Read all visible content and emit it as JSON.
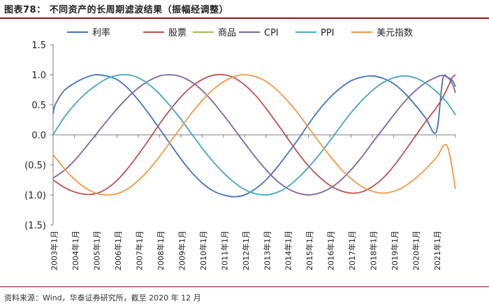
{
  "title": "图表78： 不同资产的长周期滤波结果（振幅经调整）",
  "source": "资料来源：Wind，华泰证券研究所，截至 2020 年 12 月",
  "chart_data": {
    "type": "line",
    "ylim": [
      -1.5,
      1.5
    ],
    "yticks": [
      1.5,
      1.0,
      0.5,
      0.0,
      -0.5,
      -1.0,
      -1.5
    ],
    "ytick_labels": [
      "1.5",
      "1.0",
      "0.5",
      "0.0",
      "(0.5)",
      "(1.0)",
      "(1.5)"
    ],
    "x_categories": [
      "2003年1月",
      "2004年1月",
      "2005年1月",
      "2006年1月",
      "2007年1月",
      "2008年1月",
      "2009年1月",
      "2010年1月",
      "2011年1月",
      "2012年1月",
      "2013年1月",
      "2014年1月",
      "2015年1月",
      "2016年1月",
      "2017年1月",
      "2018年1月",
      "2019年1月",
      "2020年1月",
      "2021年1月"
    ],
    "x_start": 2003.0,
    "x_end": 2021.9,
    "legend_position": "top",
    "grid": false,
    "series": [
      {
        "name": "利率",
        "color": "#4472C4",
        "x": [
          2003.0,
          2003.1,
          2003.5,
          2004.0,
          2004.5,
          2005.0,
          2005.5,
          2006.0,
          2006.5,
          2007.0,
          2007.5,
          2008.0,
          2008.5,
          2009.0,
          2009.5,
          2010.0,
          2010.5,
          2011.0,
          2011.5,
          2012.0,
          2012.5,
          2013.0,
          2013.5,
          2014.0,
          2014.5,
          2015.0,
          2015.5,
          2016.0,
          2016.5,
          2017.0,
          2017.5,
          2018.0,
          2018.5,
          2019.0,
          2019.5,
          2020.0,
          2020.5,
          2021.0,
          2021.3,
          2021.55,
          2021.7,
          2021.8,
          2021.9
        ],
        "y": [
          0.35,
          0.5,
          0.73,
          0.86,
          0.95,
          1.0,
          0.98,
          0.92,
          0.78,
          0.58,
          0.35,
          0.1,
          -0.15,
          -0.4,
          -0.62,
          -0.8,
          -0.93,
          -1.0,
          -1.03,
          -1.0,
          -0.9,
          -0.75,
          -0.55,
          -0.32,
          -0.08,
          0.18,
          0.42,
          0.62,
          0.78,
          0.9,
          0.96,
          0.98,
          0.94,
          0.85,
          0.7,
          0.5,
          0.28,
          0.05,
          0.92,
          0.95,
          0.92,
          0.88,
          0.8
        ]
      },
      {
        "name": "股票",
        "color": "#C0504D",
        "x": [
          2003.0,
          2003.5,
          2004.0,
          2004.5,
          2005.0,
          2005.5,
          2006.0,
          2006.5,
          2007.0,
          2007.5,
          2008.0,
          2008.5,
          2009.0,
          2009.5,
          2010.0,
          2010.5,
          2011.0,
          2011.5,
          2012.0,
          2012.5,
          2013.0,
          2013.5,
          2014.0,
          2014.5,
          2015.0,
          2015.5,
          2016.0,
          2016.5,
          2017.0,
          2017.5,
          2018.0,
          2018.5,
          2019.0,
          2019.5,
          2020.0,
          2020.5,
          2021.0,
          2021.3,
          2021.55,
          2021.75,
          2021.9
        ],
        "y": [
          -0.75,
          -0.87,
          -0.95,
          -0.99,
          -0.98,
          -0.9,
          -0.76,
          -0.56,
          -0.33,
          -0.08,
          0.18,
          0.42,
          0.63,
          0.8,
          0.92,
          0.99,
          1.0,
          0.95,
          0.83,
          0.66,
          0.44,
          0.2,
          -0.05,
          -0.3,
          -0.52,
          -0.7,
          -0.84,
          -0.93,
          -0.97,
          -0.95,
          -0.86,
          -0.72,
          -0.52,
          -0.28,
          -0.03,
          0.22,
          0.45,
          0.62,
          0.8,
          0.95,
          1.0
        ]
      },
      {
        "name": "商品",
        "color": "#9BBB59",
        "x": [
          2003.0,
          2003.5,
          2004.0,
          2004.5,
          2005.0,
          2005.5,
          2006.0,
          2006.5,
          2007.0,
          2007.5,
          2008.0,
          2008.5,
          2009.0,
          2009.5,
          2010.0,
          2010.5,
          2011.0,
          2011.5,
          2012.0,
          2012.5,
          2013.0,
          2013.5,
          2014.0,
          2014.5,
          2015.0,
          2015.5,
          2016.0,
          2016.5,
          2017.0,
          2017.5,
          2018.0,
          2018.5,
          2019.0,
          2019.5,
          2020.0,
          2020.5,
          2021.0,
          2021.5,
          2021.9
        ],
        "y": [
          0.0,
          0.28,
          0.5,
          0.68,
          0.82,
          0.93,
          0.99,
          1.0,
          0.95,
          0.84,
          0.68,
          0.48,
          0.26,
          0.02,
          -0.22,
          -0.44,
          -0.63,
          -0.79,
          -0.91,
          -0.98,
          -1.0,
          -0.96,
          -0.87,
          -0.72,
          -0.54,
          -0.33,
          -0.1,
          0.14,
          0.37,
          0.57,
          0.74,
          0.87,
          0.95,
          0.98,
          0.95,
          0.86,
          0.72,
          0.54,
          0.33
        ]
      },
      {
        "name": "CPI",
        "color": "#8064A2",
        "x": [
          2003.0,
          2003.5,
          2004.0,
          2004.5,
          2005.0,
          2005.5,
          2006.0,
          2006.5,
          2007.0,
          2007.5,
          2008.0,
          2008.5,
          2009.0,
          2009.5,
          2010.0,
          2010.5,
          2011.0,
          2011.5,
          2012.0,
          2012.5,
          2013.0,
          2013.5,
          2014.0,
          2014.5,
          2015.0,
          2015.5,
          2016.0,
          2016.5,
          2017.0,
          2017.5,
          2018.0,
          2018.5,
          2019.0,
          2019.5,
          2020.0,
          2020.5,
          2021.0,
          2021.3,
          2021.55,
          2021.75,
          2021.9
        ],
        "y": [
          -0.72,
          -0.6,
          -0.43,
          -0.22,
          0.0,
          0.22,
          0.43,
          0.62,
          0.78,
          0.9,
          0.98,
          1.0,
          0.97,
          0.88,
          0.74,
          0.55,
          0.33,
          0.1,
          -0.14,
          -0.37,
          -0.58,
          -0.76,
          -0.89,
          -0.97,
          -1.0,
          -0.97,
          -0.89,
          -0.76,
          -0.58,
          -0.37,
          -0.13,
          0.1,
          0.33,
          0.55,
          0.73,
          0.87,
          0.96,
          0.99,
          0.95,
          0.85,
          0.7
        ]
      },
      {
        "name": "PPI",
        "color": "#4BACC6",
        "x": [
          2003.0,
          2003.5,
          2004.0,
          2004.5,
          2005.0,
          2005.5,
          2006.0,
          2006.5,
          2007.0,
          2007.5,
          2008.0,
          2008.5,
          2009.0,
          2009.5,
          2010.0,
          2010.5,
          2011.0,
          2011.5,
          2012.0,
          2012.5,
          2013.0,
          2013.5,
          2014.0,
          2014.5,
          2015.0,
          2015.5,
          2016.0,
          2016.5,
          2017.0,
          2017.5,
          2018.0,
          2018.5,
          2019.0,
          2019.5,
          2020.0,
          2020.5,
          2021.0,
          2021.5,
          2021.9
        ],
        "y": [
          0.0,
          0.28,
          0.5,
          0.68,
          0.82,
          0.93,
          0.99,
          1.0,
          0.95,
          0.84,
          0.68,
          0.48,
          0.26,
          0.02,
          -0.22,
          -0.44,
          -0.63,
          -0.79,
          -0.91,
          -0.98,
          -1.0,
          -0.96,
          -0.87,
          -0.72,
          -0.54,
          -0.33,
          -0.1,
          0.14,
          0.37,
          0.57,
          0.74,
          0.87,
          0.95,
          0.98,
          0.95,
          0.86,
          0.72,
          0.54,
          0.33
        ]
      },
      {
        "name": "美元指数",
        "color": "#F79646",
        "x": [
          2003.0,
          2003.5,
          2004.0,
          2004.5,
          2005.0,
          2005.5,
          2006.0,
          2006.5,
          2007.0,
          2007.5,
          2008.0,
          2008.5,
          2009.0,
          2009.5,
          2010.0,
          2010.5,
          2011.0,
          2011.5,
          2012.0,
          2012.5,
          2013.0,
          2013.5,
          2014.0,
          2014.5,
          2015.0,
          2015.5,
          2016.0,
          2016.5,
          2017.0,
          2017.5,
          2018.0,
          2018.5,
          2019.0,
          2019.5,
          2020.0,
          2020.5,
          2021.0,
          2021.5,
          2021.9
        ],
        "y": [
          -0.33,
          -0.55,
          -0.74,
          -0.88,
          -0.97,
          -1.0,
          -0.98,
          -0.9,
          -0.76,
          -0.58,
          -0.36,
          -0.12,
          0.12,
          0.36,
          0.57,
          0.75,
          0.88,
          0.97,
          1.0,
          0.97,
          0.89,
          0.75,
          0.57,
          0.36,
          0.12,
          -0.12,
          -0.35,
          -0.56,
          -0.73,
          -0.86,
          -0.94,
          -0.97,
          -0.94,
          -0.86,
          -0.73,
          -0.57,
          -0.38,
          -0.18,
          -0.9
        ]
      }
    ]
  }
}
